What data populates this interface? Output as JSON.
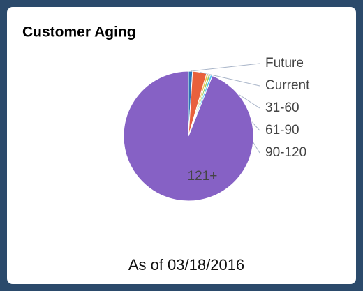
{
  "chart_data": {
    "type": "pie",
    "title": "Customer Aging",
    "categories": [
      "Future",
      "Current",
      "31-60",
      "61-90",
      "90-120",
      "121+"
    ],
    "values": [
      1,
      3.5,
      0.5,
      0.5,
      0.5,
      94
    ],
    "colors": [
      "#2e75b6",
      "#e8603c",
      "#f2c14e",
      "#9ccc65",
      "#4fc3f7",
      "#8661c5"
    ]
  },
  "footer": "As of 03/18/2016"
}
